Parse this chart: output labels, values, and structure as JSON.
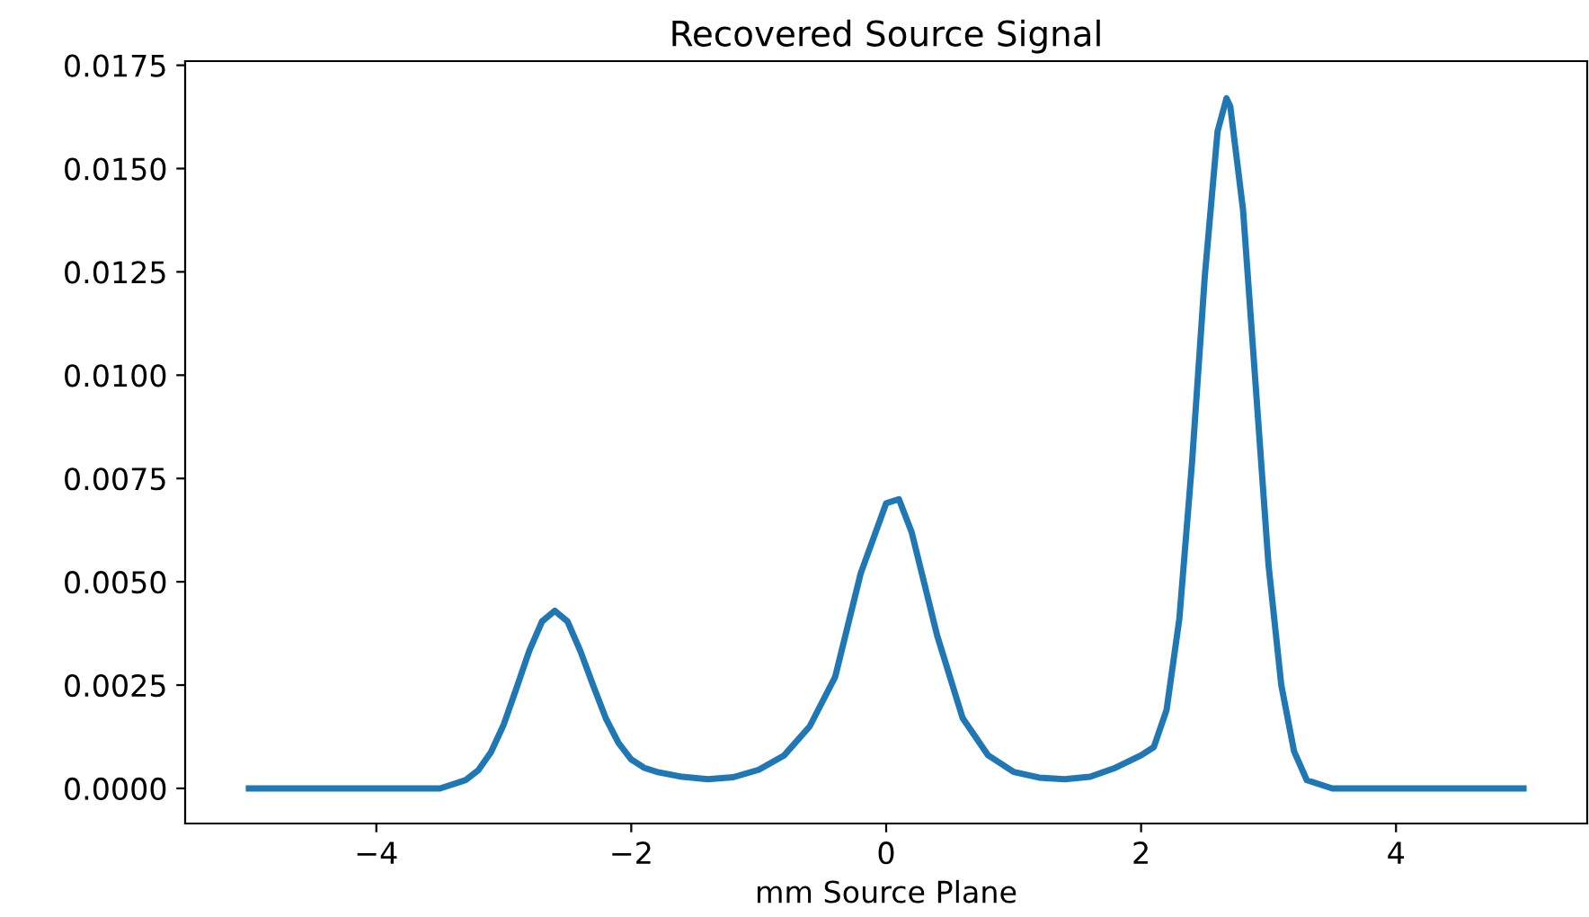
{
  "chart_data": {
    "type": "line",
    "title": "Recovered Source Signal",
    "xlabel": "mm Source Plane",
    "xlim": [
      -5.5,
      5.5
    ],
    "xticks": [
      {
        "value": -4,
        "label": "−4"
      },
      {
        "value": -2,
        "label": "−2"
      },
      0,
      2,
      4
    ],
    "ylim": [
      -0.00085,
      0.0176
    ],
    "yticks": [
      {
        "value": 0,
        "label": "0.0000"
      },
      {
        "value": 0.0025,
        "label": "0.0025"
      },
      {
        "value": 0.005,
        "label": "0.0050"
      },
      {
        "value": 0.0075,
        "label": "0.0075"
      },
      {
        "value": 0.01,
        "label": "0.0100"
      },
      {
        "value": 0.0125,
        "label": "0.0125"
      },
      {
        "value": 0.015,
        "label": "0.0150"
      },
      {
        "value": 0.0175,
        "label": "0.0175"
      }
    ],
    "grid": false,
    "legend": false,
    "series": [
      {
        "color": "#1f77b4",
        "x": [
          -5,
          -4,
          -3.5,
          -3.3,
          -3.2,
          -3.1,
          -3.0,
          -2.9,
          -2.8,
          -2.7,
          -2.6,
          -2.5,
          -2.4,
          -2.3,
          -2.2,
          -2.1,
          -2.0,
          -1.9,
          -1.8,
          -1.6,
          -1.4,
          -1.2,
          -1.0,
          -0.8,
          -0.6,
          -0.4,
          -0.2,
          0.0,
          0.1,
          0.2,
          0.4,
          0.6,
          0.8,
          1.0,
          1.2,
          1.4,
          1.6,
          1.8,
          2.0,
          2.1,
          2.2,
          2.3,
          2.4,
          2.5,
          2.6,
          2.67,
          2.7,
          2.8,
          2.9,
          3.0,
          3.1,
          3.2,
          3.3,
          3.5,
          4,
          5
        ],
        "values": [
          0,
          0,
          0,
          0.0002,
          0.00044,
          0.00088,
          0.00155,
          0.00243,
          0.00333,
          0.00404,
          0.0043,
          0.00404,
          0.00333,
          0.0025,
          0.0017,
          0.0011,
          0.0007,
          0.0005,
          0.0004,
          0.00028,
          0.00022,
          0.00027,
          0.00045,
          0.0008,
          0.0015,
          0.0027,
          0.0052,
          0.0069,
          0.007,
          0.0062,
          0.0037,
          0.0017,
          0.0008,
          0.0004,
          0.00026,
          0.00022,
          0.00028,
          0.0005,
          0.0008,
          0.001,
          0.0019,
          0.0041,
          0.0079,
          0.0124,
          0.0159,
          0.0167,
          0.0165,
          0.014,
          0.0097,
          0.0054,
          0.0025,
          0.0009,
          0.0002,
          0,
          0,
          0
        ]
      }
    ]
  }
}
